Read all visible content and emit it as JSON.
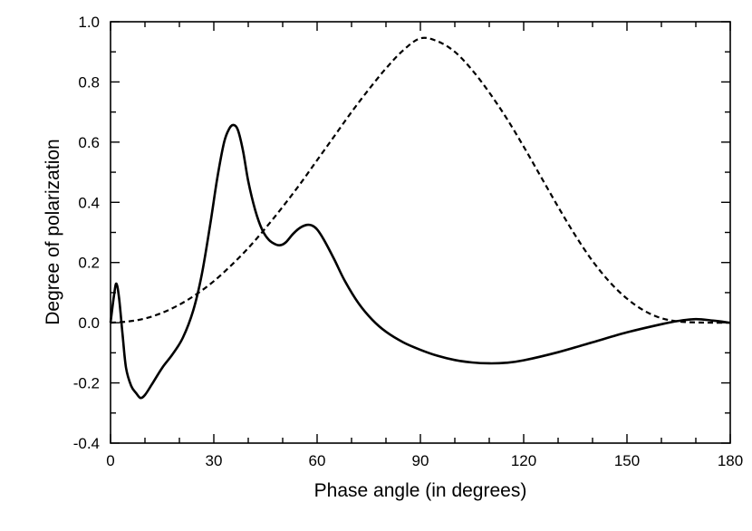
{
  "chart_data": {
    "type": "line",
    "title": "",
    "xlabel": "Phase angle (in degrees)",
    "ylabel": "Degree of polarization",
    "xlim": [
      0,
      180
    ],
    "ylim": [
      -0.4,
      1.0
    ],
    "xticks": [
      0,
      30,
      60,
      90,
      120,
      150,
      180
    ],
    "xtick_labels": [
      "0",
      "30",
      "60",
      "90",
      "120",
      "150",
      "180"
    ],
    "yticks": [
      -0.4,
      -0.2,
      0.0,
      0.2,
      0.4,
      0.6,
      0.8,
      1.0
    ],
    "ytick_labels": [
      "-0.4",
      "-0.2",
      "0.0",
      "0.2",
      "0.4",
      "0.6",
      "0.8",
      "1.0"
    ],
    "grid": false,
    "legend": "none",
    "series": [
      {
        "style": "solid",
        "color": "#000000",
        "x": [
          0,
          1,
          1.7,
          2.5,
          3.5,
          4.5,
          6,
          7.5,
          8.7,
          10,
          12,
          15,
          18,
          21,
          24,
          26.5,
          29,
          31,
          33,
          34.5,
          35.7,
          37,
          38.5,
          40,
          42,
          44,
          46,
          48,
          49.5,
          51,
          53,
          55,
          57,
          58.5,
          60,
          62,
          65,
          68,
          72,
          76,
          80,
          85,
          90,
          95,
          100,
          105,
          110,
          115,
          120,
          130,
          140,
          150,
          160,
          165,
          170,
          175,
          180
        ],
        "y": [
          0.0,
          0.09,
          0.13,
          0.08,
          -0.04,
          -0.15,
          -0.21,
          -0.235,
          -0.25,
          -0.24,
          -0.205,
          -0.15,
          -0.105,
          -0.05,
          0.04,
          0.16,
          0.33,
          0.48,
          0.6,
          0.645,
          0.657,
          0.64,
          0.57,
          0.47,
          0.375,
          0.31,
          0.275,
          0.26,
          0.258,
          0.268,
          0.295,
          0.315,
          0.325,
          0.323,
          0.31,
          0.275,
          0.21,
          0.14,
          0.065,
          0.01,
          -0.03,
          -0.065,
          -0.09,
          -0.11,
          -0.124,
          -0.132,
          -0.135,
          -0.133,
          -0.125,
          -0.098,
          -0.065,
          -0.032,
          -0.005,
          0.006,
          0.012,
          0.007,
          0.0
        ]
      },
      {
        "style": "dashed",
        "color": "#000000",
        "x": [
          0,
          5,
          10,
          15,
          20,
          25,
          30,
          35,
          40,
          45,
          50,
          55,
          60,
          65,
          70,
          75,
          80,
          85,
          90,
          95,
          100,
          105,
          110,
          115,
          120,
          125,
          130,
          135,
          140,
          145,
          150,
          155,
          160,
          165,
          170,
          175,
          180
        ],
        "y": [
          0.0,
          0.004,
          0.014,
          0.033,
          0.06,
          0.095,
          0.138,
          0.19,
          0.248,
          0.314,
          0.385,
          0.46,
          0.54,
          0.62,
          0.7,
          0.775,
          0.845,
          0.905,
          0.945,
          0.935,
          0.9,
          0.84,
          0.765,
          0.68,
          0.585,
          0.485,
          0.385,
          0.29,
          0.205,
          0.135,
          0.08,
          0.04,
          0.015,
          0.004,
          0.001,
          0.0,
          0.0
        ]
      }
    ]
  }
}
